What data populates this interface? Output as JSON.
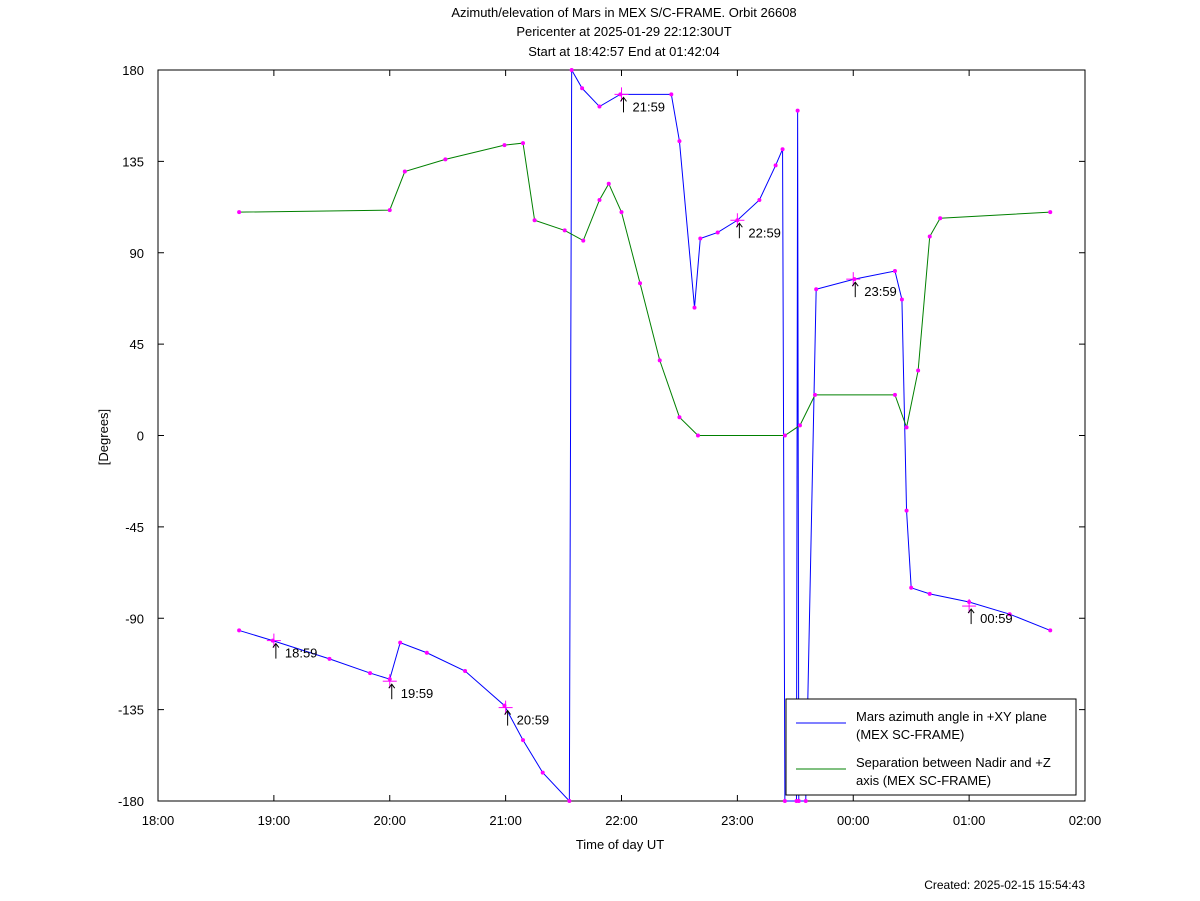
{
  "chart_data": {
    "type": "line",
    "title": "Azimuth/elevation of Mars in MEX S/C-FRAME.  Orbit 26608",
    "subtitle": [
      "Pericenter at 2025-01-29 22:12:30UT",
      "Start at 18:42:57 End at 01:42:04"
    ],
    "xlabel": "Time of day UT",
    "ylabel": "[Degrees]",
    "footer": "Created: 2025-02-15 15:54:43",
    "xlim": [
      18,
      26
    ],
    "xticks": [
      {
        "value": 18,
        "label": "18:00"
      },
      {
        "value": 19,
        "label": "19:00"
      },
      {
        "value": 20,
        "label": "20:00"
      },
      {
        "value": 21,
        "label": "21:00"
      },
      {
        "value": 22,
        "label": "22:00"
      },
      {
        "value": 23,
        "label": "23:00"
      },
      {
        "value": 24,
        "label": "00:00"
      },
      {
        "value": 25,
        "label": "01:00"
      },
      {
        "value": 26,
        "label": "02:00"
      }
    ],
    "ylim": [
      -180,
      180
    ],
    "yticks": [
      -180,
      -135,
      -90,
      -45,
      0,
      45,
      90,
      135,
      180
    ],
    "grid": false,
    "legend": "lower right",
    "marker_color": "#ff00ff",
    "series": [
      {
        "name": "Mars azimuth angle in +XY plane (MEX SC-FRAME)",
        "color": "#0000ff",
        "x": [
          18.7,
          18.99,
          19.48,
          19.83,
          20.0,
          20.09,
          20.32,
          20.65,
          20.99,
          21.15,
          21.32,
          21.55,
          21.57,
          21.66,
          21.81,
          21.99,
          22.43,
          22.5,
          22.63,
          22.68,
          22.83,
          23.0,
          23.19,
          23.33,
          23.39,
          23.41,
          23.51,
          23.52,
          23.53,
          23.59,
          23.68,
          24.01,
          24.36,
          24.42,
          24.46,
          24.5,
          24.66,
          25.0,
          25.35,
          25.7
        ],
        "values": [
          -96,
          -101,
          -110,
          -117,
          -120,
          -102,
          -107,
          -116,
          -133,
          -150,
          -166,
          -180,
          180,
          171,
          162,
          168,
          168,
          145,
          63,
          97,
          100,
          106,
          116,
          133,
          141,
          -180,
          -180,
          160,
          -180,
          -180,
          72,
          77,
          81,
          67,
          -37,
          -75,
          -78,
          -82,
          -88,
          -96
        ]
      },
      {
        "name": "Separation between Nadir and +Z axis (MEX SC-FRAME)",
        "color": "#008000",
        "x": [
          18.7,
          20.0,
          20.13,
          20.48,
          20.99,
          21.15,
          21.25,
          21.51,
          21.67,
          21.81,
          21.89,
          22.0,
          22.16,
          22.33,
          22.5,
          22.66,
          23.41,
          23.54,
          23.67,
          24.36,
          24.46,
          24.56,
          24.66,
          24.75,
          25.7
        ],
        "values": [
          110,
          111,
          130,
          136,
          143,
          144,
          106,
          101,
          96,
          116,
          124,
          110,
          75,
          37,
          9,
          0,
          0,
          5,
          20,
          20,
          4,
          32,
          98,
          107,
          110
        ]
      }
    ],
    "annotations": [
      {
        "text": "18:59",
        "x": 19.0,
        "y": -101
      },
      {
        "text": "19:59",
        "x": 20.0,
        "y": -121
      },
      {
        "text": "20:59",
        "x": 21.0,
        "y": -134
      },
      {
        "text": "21:59",
        "x": 22.0,
        "y": 168
      },
      {
        "text": "22:59",
        "x": 23.0,
        "y": 106
      },
      {
        "text": "23:59",
        "x": 24.0,
        "y": 77
      },
      {
        "text": "00:59",
        "x": 25.0,
        "y": -84
      }
    ]
  }
}
